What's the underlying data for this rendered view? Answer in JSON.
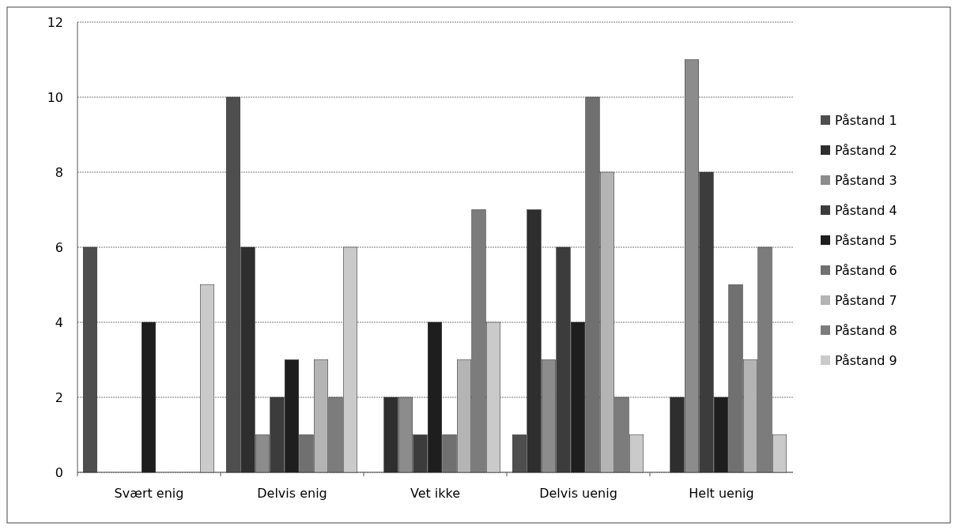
{
  "chart_data": {
    "type": "bar",
    "categories": [
      "Svært enig",
      "Delvis enig",
      "Vet ikke",
      "Delvis uenig",
      "Helt uenig"
    ],
    "series": [
      {
        "name": "Påstand 1",
        "color": "#4e4e4e",
        "values": [
          6,
          10,
          0,
          1,
          0
        ]
      },
      {
        "name": "Påstand 2",
        "color": "#2e2e2e",
        "values": [
          0,
          6,
          2,
          7,
          2
        ]
      },
      {
        "name": "Påstand 3",
        "color": "#8c8c8c",
        "values": [
          0,
          1,
          2,
          3,
          11
        ]
      },
      {
        "name": "Påstand 4",
        "color": "#3c3c3c",
        "values": [
          0,
          2,
          1,
          6,
          8
        ]
      },
      {
        "name": "Påstand 5",
        "color": "#1e1e1e",
        "values": [
          4,
          3,
          4,
          4,
          2
        ]
      },
      {
        "name": "Påstand 6",
        "color": "#707070",
        "values": [
          0,
          1,
          1,
          10,
          5
        ]
      },
      {
        "name": "Påstand 7",
        "color": "#b4b4b4",
        "values": [
          0,
          3,
          3,
          8,
          3
        ]
      },
      {
        "name": "Påstand 8",
        "color": "#7c7c7c",
        "values": [
          0,
          2,
          7,
          2,
          6
        ]
      },
      {
        "name": "Påstand 9",
        "color": "#cacaca",
        "values": [
          5,
          6,
          4,
          1,
          1
        ]
      }
    ],
    "ylim": [
      0,
      12
    ],
    "yticks": [
      0,
      2,
      4,
      6,
      8,
      10,
      12
    ],
    "grid": "y",
    "legend": "right"
  }
}
